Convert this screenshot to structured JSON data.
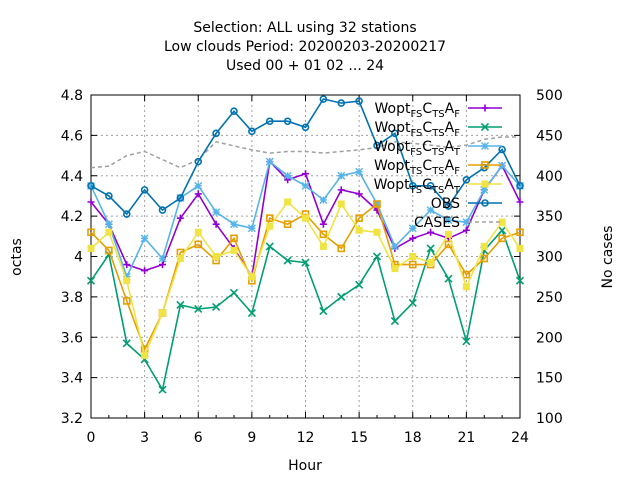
{
  "chart_data": {
    "type": "line",
    "title_lines": [
      "Selection: ALL using    32 stations",
      "Low clouds   Period: 20200203-20200217",
      "Used  00 + 01 02 ... 24"
    ],
    "xlabel": "Hour",
    "ylabel": "octas",
    "y2label": "No cases",
    "xlim": [
      0,
      24
    ],
    "ylim": [
      3.2,
      4.8
    ],
    "y2lim": [
      100,
      500
    ],
    "xticks": [
      "0",
      "3",
      "6",
      "9",
      "12",
      "15",
      "18",
      "21",
      "24"
    ],
    "yticks": [
      "3.2",
      "3.4",
      "3.6",
      "3.8",
      "4",
      "4.2",
      "4.4",
      "4.6",
      "4.8"
    ],
    "y2ticks": [
      "100",
      "150",
      "200",
      "250",
      "300",
      "350",
      "400",
      "450",
      "500"
    ],
    "grid": true,
    "legend_position": "top-right",
    "x": [
      0,
      1,
      2,
      3,
      4,
      5,
      6,
      7,
      8,
      9,
      10,
      11,
      12,
      13,
      14,
      15,
      16,
      17,
      18,
      19,
      20,
      21,
      22,
      23,
      24
    ],
    "series": [
      {
        "legend": [
          [
            "Wopt",
            ""
          ],
          [
            "FS",
            "sub"
          ],
          [
            "C",
            ""
          ],
          [
            "TS",
            "sub"
          ],
          [
            "A",
            ""
          ],
          [
            "F",
            "sub"
          ]
        ],
        "color": "#9400d3",
        "marker": "plus",
        "values": [
          4.27,
          4.16,
          3.96,
          3.93,
          3.96,
          4.19,
          4.31,
          4.16,
          4.04,
          3.9,
          4.47,
          4.38,
          4.41,
          4.16,
          4.33,
          4.31,
          4.23,
          4.04,
          4.09,
          4.12,
          4.09,
          4.13,
          4.33,
          4.45,
          4.27
        ]
      },
      {
        "legend": [
          [
            "Wopt",
            ""
          ],
          [
            "FS",
            "sub"
          ],
          [
            "C",
            ""
          ],
          [
            "TS",
            "sub"
          ],
          [
            "A",
            ""
          ],
          [
            "F",
            "sub"
          ]
        ],
        "color": "#009e73",
        "marker": "x",
        "values": [
          3.88,
          4.01,
          3.57,
          3.49,
          3.34,
          3.76,
          3.74,
          3.75,
          3.82,
          3.72,
          4.05,
          3.98,
          3.97,
          3.73,
          3.8,
          3.86,
          4.0,
          3.68,
          3.77,
          4.04,
          3.89,
          3.58,
          4.03,
          4.13,
          3.88
        ]
      },
      {
        "legend": [
          [
            "Wopt",
            ""
          ],
          [
            "FS",
            "sub"
          ],
          [
            "C",
            ""
          ],
          [
            "TS",
            "sub"
          ],
          [
            "A",
            ""
          ],
          [
            "T",
            "sub"
          ]
        ],
        "color": "#56b4e9",
        "marker": "star",
        "values": [
          4.35,
          4.16,
          3.9,
          4.09,
          3.99,
          4.29,
          4.35,
          4.22,
          4.16,
          4.14,
          4.47,
          4.4,
          4.35,
          4.28,
          4.4,
          4.42,
          4.26,
          4.05,
          4.14,
          4.23,
          4.18,
          4.17,
          4.33,
          4.45,
          4.35
        ]
      },
      {
        "legend": [
          [
            "Wopt",
            ""
          ],
          [
            "TS",
            "sub"
          ],
          [
            "C",
            ""
          ],
          [
            "TS",
            "sub"
          ],
          [
            "A",
            ""
          ],
          [
            "F",
            "sub"
          ]
        ],
        "color": "#e69f00",
        "marker": "box",
        "values": [
          4.12,
          4.03,
          3.78,
          3.54,
          3.72,
          4.02,
          4.06,
          3.98,
          4.09,
          3.88,
          4.19,
          4.16,
          4.21,
          4.11,
          4.04,
          4.19,
          4.26,
          3.96,
          3.96,
          3.96,
          4.06,
          3.91,
          3.99,
          4.09,
          4.12
        ]
      },
      {
        "legend": [
          [
            "Wopt",
            ""
          ],
          [
            "TS",
            "sub"
          ],
          [
            "C",
            ""
          ],
          [
            "TS",
            "sub"
          ],
          [
            "A",
            ""
          ],
          [
            "T",
            "sub"
          ]
        ],
        "color": "#f0e442",
        "marker": "fbox",
        "values": [
          4.04,
          4.12,
          3.88,
          3.51,
          3.72,
          3.99,
          4.12,
          4.0,
          4.03,
          3.9,
          4.15,
          4.27,
          4.19,
          4.05,
          4.26,
          4.13,
          4.12,
          3.94,
          4.0,
          3.97,
          4.11,
          3.85,
          4.05,
          4.17,
          4.04
        ]
      },
      {
        "legend": [
          [
            "OBS",
            ""
          ]
        ],
        "color": "#0072b2",
        "marker": "circle",
        "values": [
          4.35,
          4.3,
          4.21,
          4.33,
          4.23,
          4.29,
          4.47,
          4.61,
          4.72,
          4.62,
          4.67,
          4.67,
          4.64,
          4.78,
          4.76,
          4.77,
          4.55,
          4.61,
          4.35,
          4.35,
          4.25,
          4.38,
          4.44,
          4.53,
          4.35
        ]
      }
    ],
    "cases": {
      "legend": [
        [
          "CASES",
          ""
        ]
      ],
      "color": "#a0a0a0",
      "values": [
        410,
        412,
        425,
        430,
        420,
        410,
        420,
        442,
        437,
        432,
        428,
        430,
        430,
        428,
        430,
        432,
        435,
        442,
        440,
        438,
        435,
        438,
        445,
        448,
        448
      ]
    }
  }
}
